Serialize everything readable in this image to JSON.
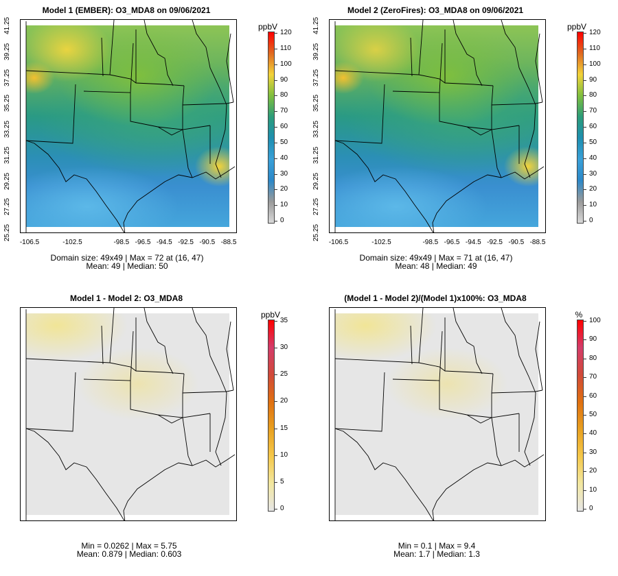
{
  "colors": {
    "abs_scale": [
      "#d9d9d9",
      "#9a9a9a",
      "#2c88c8",
      "#3aa0d8",
      "#1e8fb0",
      "#2b9c7a",
      "#7fbf3e",
      "#f2d33a",
      "#e06a20",
      "#ff0000"
    ],
    "diff_scale": [
      "#e6e6e6",
      "#f2e7a0",
      "#f5c84a",
      "#e8a020",
      "#e07010",
      "#d14a3a",
      "#d43c6a",
      "#ff0000"
    ]
  },
  "panels": [
    {
      "id": "p1",
      "title": "Model 1 (EMBER): O3_MDA8 on 09/06/2021",
      "stats_line1": "Domain size: 49x49 | Max = 72 at (16, 47)",
      "stats_line2": "Mean: 49 |  Median: 50",
      "unit": "ppbV",
      "scale": "abs",
      "cb_ticks": [
        "120",
        "110",
        "100",
        "90",
        "80",
        "70",
        "60",
        "50",
        "40",
        "30",
        "20",
        "10",
        "0"
      ],
      "yticks": [
        "41.25",
        "39.25",
        "37.25",
        "35.25",
        "33.25",
        "31.25",
        "29.25",
        "27.25",
        "25.25"
      ],
      "xticks": [
        "-106.5",
        "-102.5",
        "-98.5",
        "-96.5",
        "-94.5",
        "-92.5",
        "-90.5",
        "-88.5"
      ]
    },
    {
      "id": "p2",
      "title": "Model 2 (ZeroFires): O3_MDA8 on 09/06/2021",
      "stats_line1": "Domain size: 49x49 | Max = 71 at (16, 47)",
      "stats_line2": "Mean: 48 |  Median: 49",
      "unit": "ppbV",
      "scale": "abs",
      "cb_ticks": [
        "120",
        "110",
        "100",
        "90",
        "80",
        "70",
        "60",
        "50",
        "40",
        "30",
        "20",
        "10",
        "0"
      ],
      "yticks": [
        "41.25",
        "39.25",
        "37.25",
        "35.25",
        "33.25",
        "31.25",
        "29.25",
        "27.25",
        "25.25"
      ],
      "xticks": [
        "-106.5",
        "-102.5",
        "-98.5",
        "-96.5",
        "-94.5",
        "-92.5",
        "-90.5",
        "-88.5"
      ]
    },
    {
      "id": "p3",
      "title": "Model 1 - Model 2: O3_MDA8",
      "stats_line1": "Min = 0.0262 | Max = 5.75",
      "stats_line2": "Mean: 0.879 |  Median: 0.603",
      "unit": "ppbV",
      "scale": "diff",
      "cb_ticks": [
        "35",
        "30",
        "25",
        "20",
        "15",
        "10",
        "5",
        "0"
      ],
      "yticks": [],
      "xticks": []
    },
    {
      "id": "p4",
      "title": "(Model 1 - Model 2)/(Model 1)x100%: O3_MDA8",
      "stats_line1": "Min = 0.1 | Max = 9.4",
      "stats_line2": "Mean: 1.7 |  Median: 1.3",
      "unit": "%",
      "scale": "diff",
      "cb_ticks": [
        "100",
        "90",
        "80",
        "70",
        "60",
        "50",
        "40",
        "30",
        "20",
        "10",
        "0"
      ],
      "yticks": [],
      "xticks": []
    }
  ],
  "chart_data": [
    {
      "type": "heatmap",
      "title": "Model 1 (EMBER): O3_MDA8 on 09/06/2021",
      "colorbar_label": "ppbV",
      "colorbar_range": [
        0,
        120
      ],
      "x_ticks": [
        -106.5,
        -102.5,
        -98.5,
        -96.5,
        -94.5,
        -92.5,
        -90.5,
        -88.5
      ],
      "y_ticks": [
        41.25,
        39.25,
        37.25,
        35.25,
        33.25,
        31.25,
        29.25,
        27.25,
        25.25
      ],
      "grid_size": "49x49",
      "max": 72,
      "max_at": [
        16,
        47
      ],
      "mean": 49,
      "median": 50
    },
    {
      "type": "heatmap",
      "title": "Model 2 (ZeroFires): O3_MDA8 on 09/06/2021",
      "colorbar_label": "ppbV",
      "colorbar_range": [
        0,
        120
      ],
      "x_ticks": [
        -106.5,
        -102.5,
        -98.5,
        -96.5,
        -94.5,
        -92.5,
        -90.5,
        -88.5
      ],
      "y_ticks": [
        41.25,
        39.25,
        37.25,
        35.25,
        33.25,
        31.25,
        29.25,
        27.25,
        25.25
      ],
      "grid_size": "49x49",
      "max": 71,
      "max_at": [
        16,
        47
      ],
      "mean": 48,
      "median": 49
    },
    {
      "type": "heatmap",
      "title": "Model 1 - Model 2: O3_MDA8",
      "colorbar_label": "ppbV",
      "colorbar_range": [
        0,
        35
      ],
      "min": 0.0262,
      "max": 5.75,
      "mean": 0.879,
      "median": 0.603
    },
    {
      "type": "heatmap",
      "title": "(Model 1 - Model 2)/(Model 1)x100%: O3_MDA8",
      "colorbar_label": "%",
      "colorbar_range": [
        0,
        100
      ],
      "min": 0.1,
      "max": 9.4,
      "mean": 1.7,
      "median": 1.3
    }
  ]
}
